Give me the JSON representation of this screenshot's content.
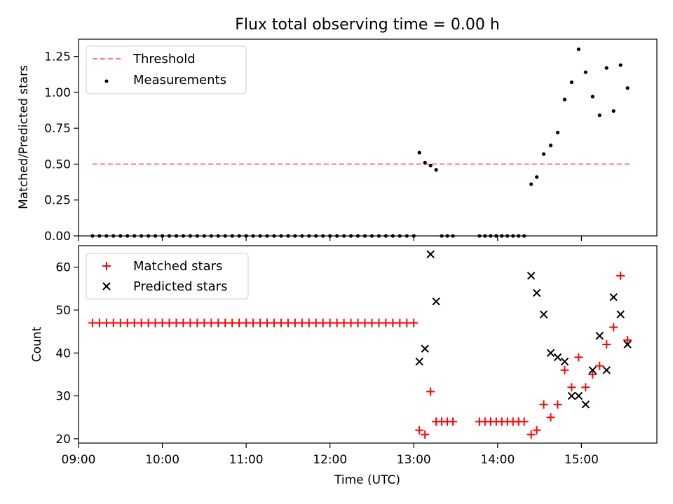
{
  "chart_data": [
    {
      "type": "scatter",
      "title": "Flux total observing time = 0.00 h",
      "xlabel": "",
      "ylabel": "Matched/Predicted stars",
      "xlim": [
        "09:00",
        "15:54"
      ],
      "ylim": [
        0,
        1.37
      ],
      "yticks": [
        "0.00",
        "0.25",
        "0.50",
        "0.75",
        "1.00",
        "1.25"
      ],
      "legend_position": "upper-left",
      "series": [
        {
          "name": "Threshold",
          "style": "dashed-line",
          "color": "#f08080",
          "x": [
            "09:10",
            "15:35"
          ],
          "y": [
            0.5,
            0.5
          ]
        },
        {
          "name": "Measurements",
          "style": "dots",
          "color": "#000000",
          "x": [
            "09:10",
            "09:15",
            "09:20",
            "09:25",
            "09:30",
            "09:35",
            "09:40",
            "09:45",
            "09:50",
            "09:55",
            "10:00",
            "10:05",
            "10:10",
            "10:15",
            "10:20",
            "10:25",
            "10:30",
            "10:35",
            "10:40",
            "10:45",
            "10:50",
            "10:55",
            "11:00",
            "11:05",
            "11:10",
            "11:15",
            "11:20",
            "11:25",
            "11:30",
            "11:35",
            "11:40",
            "11:45",
            "11:50",
            "11:55",
            "12:00",
            "12:05",
            "12:10",
            "12:15",
            "12:20",
            "12:25",
            "12:30",
            "12:35",
            "12:40",
            "12:45",
            "12:50",
            "12:55",
            "13:00",
            "13:04",
            "13:08",
            "13:12",
            "13:16",
            "13:20",
            "13:24",
            "13:28",
            "13:47",
            "13:51",
            "13:55",
            "13:59",
            "14:03",
            "14:07",
            "14:11",
            "14:15",
            "14:19",
            "14:24",
            "14:28",
            "14:33",
            "14:38",
            "14:43",
            "14:48",
            "14:53",
            "14:58",
            "15:03",
            "15:08",
            "15:13",
            "15:18",
            "15:23",
            "15:28",
            "15:33"
          ],
          "y": [
            0,
            0,
            0,
            0,
            0,
            0,
            0,
            0,
            0,
            0,
            0,
            0,
            0,
            0,
            0,
            0,
            0,
            0,
            0,
            0,
            0,
            0,
            0,
            0,
            0,
            0,
            0,
            0,
            0,
            0,
            0,
            0,
            0,
            0,
            0,
            0,
            0,
            0,
            0,
            0,
            0,
            0,
            0,
            0,
            0,
            0,
            0,
            0.58,
            0.51,
            0.49,
            0.46,
            0,
            0,
            0,
            0,
            0,
            0,
            0,
            0,
            0,
            0,
            0,
            0,
            0.36,
            0.41,
            0.57,
            0.63,
            0.72,
            0.95,
            1.07,
            1.3,
            1.14,
            0.97,
            0.84,
            1.17,
            0.87,
            1.19,
            1.03
          ]
        }
      ]
    },
    {
      "type": "scatter",
      "title": "",
      "xlabel": "Time (UTC)",
      "ylabel": "Count",
      "xlim": [
        "09:00",
        "15:54"
      ],
      "ylim": [
        19,
        65
      ],
      "xticks": [
        "09:00",
        "10:00",
        "11:00",
        "12:00",
        "13:00",
        "14:00",
        "15:00"
      ],
      "yticks": [
        "20",
        "30",
        "40",
        "50",
        "60"
      ],
      "legend_position": "upper-left",
      "series": [
        {
          "name": "Matched stars",
          "marker": "+",
          "color": "#ff0000",
          "x": [
            "09:10",
            "09:15",
            "09:20",
            "09:25",
            "09:30",
            "09:35",
            "09:40",
            "09:45",
            "09:50",
            "09:55",
            "10:00",
            "10:05",
            "10:10",
            "10:15",
            "10:20",
            "10:25",
            "10:30",
            "10:35",
            "10:40",
            "10:45",
            "10:50",
            "10:55",
            "11:00",
            "11:05",
            "11:10",
            "11:15",
            "11:20",
            "11:25",
            "11:30",
            "11:35",
            "11:40",
            "11:45",
            "11:50",
            "11:55",
            "12:00",
            "12:05",
            "12:10",
            "12:15",
            "12:20",
            "12:25",
            "12:30",
            "12:35",
            "12:40",
            "12:45",
            "12:50",
            "12:55",
            "13:00",
            "13:04",
            "13:08",
            "13:12",
            "13:16",
            "13:20",
            "13:24",
            "13:28",
            "13:47",
            "13:51",
            "13:55",
            "13:59",
            "14:03",
            "14:07",
            "14:11",
            "14:15",
            "14:19",
            "14:24",
            "14:28",
            "14:33",
            "14:38",
            "14:43",
            "14:48",
            "14:53",
            "14:58",
            "15:03",
            "15:08",
            "15:13",
            "15:18",
            "15:23",
            "15:28",
            "15:33"
          ],
          "y": [
            47,
            47,
            47,
            47,
            47,
            47,
            47,
            47,
            47,
            47,
            47,
            47,
            47,
            47,
            47,
            47,
            47,
            47,
            47,
            47,
            47,
            47,
            47,
            47,
            47,
            47,
            47,
            47,
            47,
            47,
            47,
            47,
            47,
            47,
            47,
            47,
            47,
            47,
            47,
            47,
            47,
            47,
            47,
            47,
            47,
            47,
            47,
            22,
            21,
            31,
            24,
            24,
            24,
            24,
            24,
            24,
            24,
            24,
            24,
            24,
            24,
            24,
            24,
            21,
            22,
            28,
            25,
            28,
            36,
            32,
            39,
            32,
            35,
            37,
            42,
            46,
            58,
            43
          ]
        },
        {
          "name": "Predicted stars",
          "marker": "x",
          "color": "#000000",
          "x": [
            "13:04",
            "13:08",
            "13:12",
            "13:16",
            "14:24",
            "14:28",
            "14:33",
            "14:38",
            "14:43",
            "14:48",
            "14:53",
            "14:58",
            "15:03",
            "15:08",
            "15:13",
            "15:18",
            "15:23",
            "15:28",
            "15:33"
          ],
          "y": [
            38,
            41,
            63,
            52,
            58,
            54,
            49,
            40,
            39,
            38,
            30,
            30,
            28,
            36,
            44,
            36,
            53,
            49,
            42
          ]
        }
      ]
    }
  ]
}
